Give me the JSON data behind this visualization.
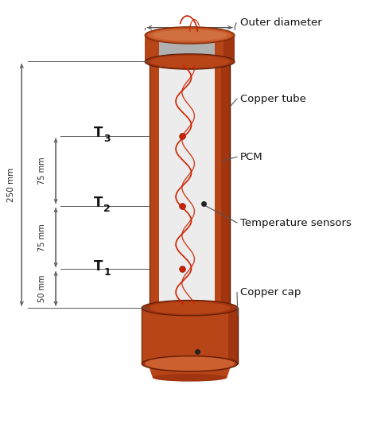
{
  "fig_width": 4.74,
  "fig_height": 5.62,
  "dpi": 100,
  "bg_color": "#ffffff",
  "copper_dark": "#a03510",
  "copper_mid": "#b84518",
  "copper_light": "#cc6030",
  "copper_top": "#d07040",
  "pcm_color": "#dcdcdc",
  "pcm_light": "#ececec",
  "wire_color": "#cc2200",
  "line_color": "#555555",
  "labels": {
    "outer_diameter": "Outer diameter",
    "copper_tube": "Copper tube",
    "pcm": "PCM",
    "temp_sensors": "Temperature sensors",
    "copper_cap": "Copper cap",
    "dim_250": "250 mm",
    "dim_75a": "75 mm",
    "dim_75b": "75 mm",
    "dim_50": "50 mm"
  }
}
